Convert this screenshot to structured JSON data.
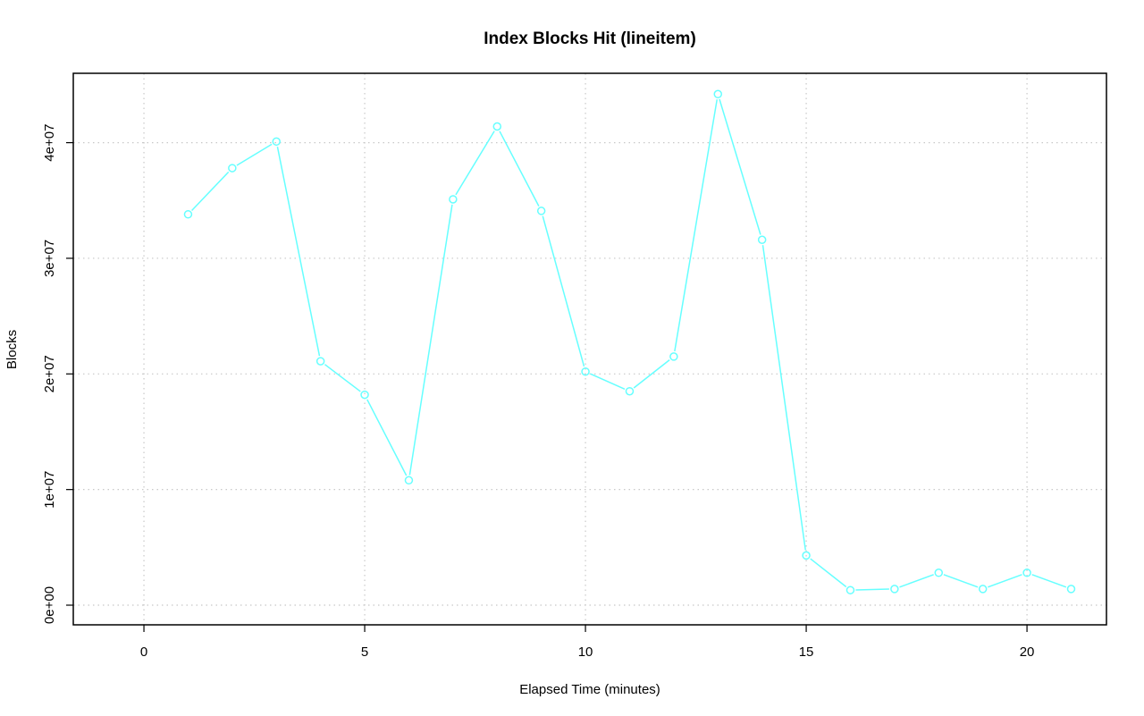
{
  "chart_data": {
    "type": "line",
    "title": "Index Blocks Hit (lineitem)",
    "xlabel": "Elapsed Time (minutes)",
    "ylabel": "Blocks",
    "xlim": [
      -1.6,
      21.8
    ],
    "ylim": [
      -1700000,
      46000000
    ],
    "x_ticks": [
      0,
      5,
      10,
      15,
      20
    ],
    "x_tick_labels": [
      "0",
      "5",
      "10",
      "15",
      "20"
    ],
    "y_ticks": [
      0,
      10000000,
      20000000,
      30000000,
      40000000
    ],
    "y_tick_labels": [
      "0e+00",
      "1e+07",
      "2e+07",
      "3e+07",
      "4e+07"
    ],
    "grid": true,
    "series_color": "#66ffff",
    "series": [
      {
        "x": [
          1,
          2,
          3,
          4,
          5,
          6,
          7,
          8,
          9,
          10,
          11,
          12,
          13,
          14,
          15,
          16,
          17,
          18,
          19,
          20,
          21
        ],
        "values": [
          33800000,
          37800000,
          40100000,
          21100000,
          18200000,
          10800000,
          35100000,
          41400000,
          34100000,
          20200000,
          18500000,
          21500000,
          44200000,
          31600000,
          4300000,
          1300000,
          1400000,
          2800000,
          1400000,
          2800000,
          1400000
        ]
      }
    ]
  }
}
